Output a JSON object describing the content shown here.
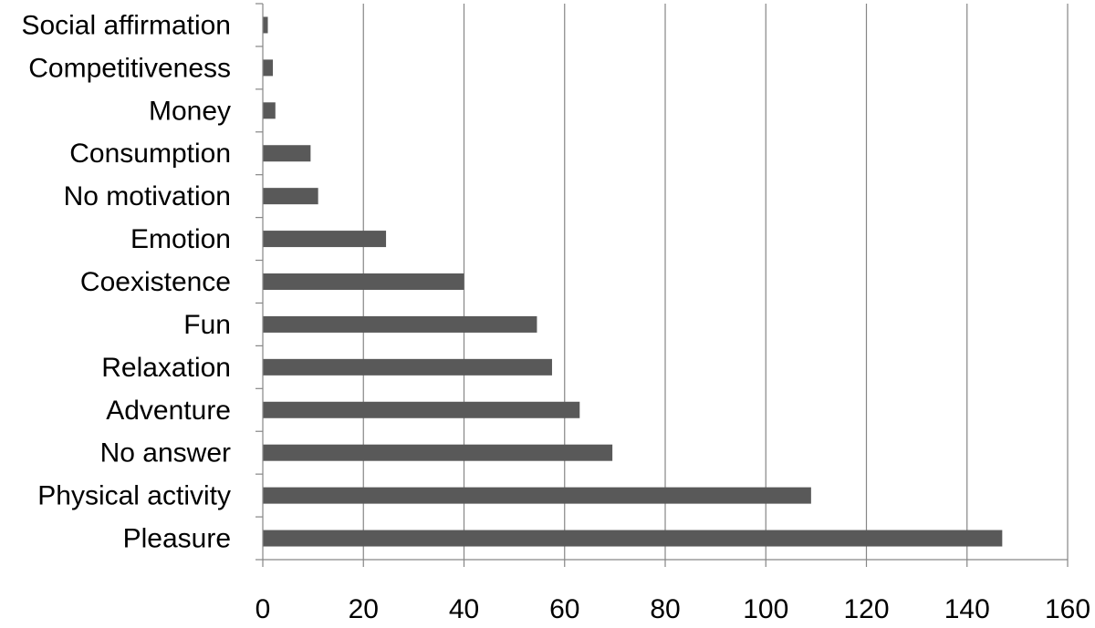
{
  "chart_data": {
    "type": "bar",
    "orientation": "horizontal",
    "categories": [
      "Social affirmation",
      "Competitiveness",
      "Money",
      "Consumption",
      "No motivation",
      "Emotion",
      "Coexistence",
      "Fun",
      "Relaxation",
      "Adventure",
      "No answer",
      "Physical activity",
      "Pleasure"
    ],
    "values": [
      1,
      2,
      2.5,
      9.5,
      11,
      24.5,
      40,
      54.5,
      57.5,
      63,
      69.5,
      109,
      147
    ],
    "xlim": [
      0,
      160
    ],
    "xticks": [
      "0",
      "20",
      "40",
      "60",
      "80",
      "100",
      "120",
      "140",
      "160"
    ],
    "title": "",
    "xlabel": "",
    "ylabel": "",
    "grid": "vertical gridlines",
    "legend": "none",
    "colors": {
      "bar": "#595959",
      "grid": "#868686",
      "axis": "#868686"
    }
  }
}
